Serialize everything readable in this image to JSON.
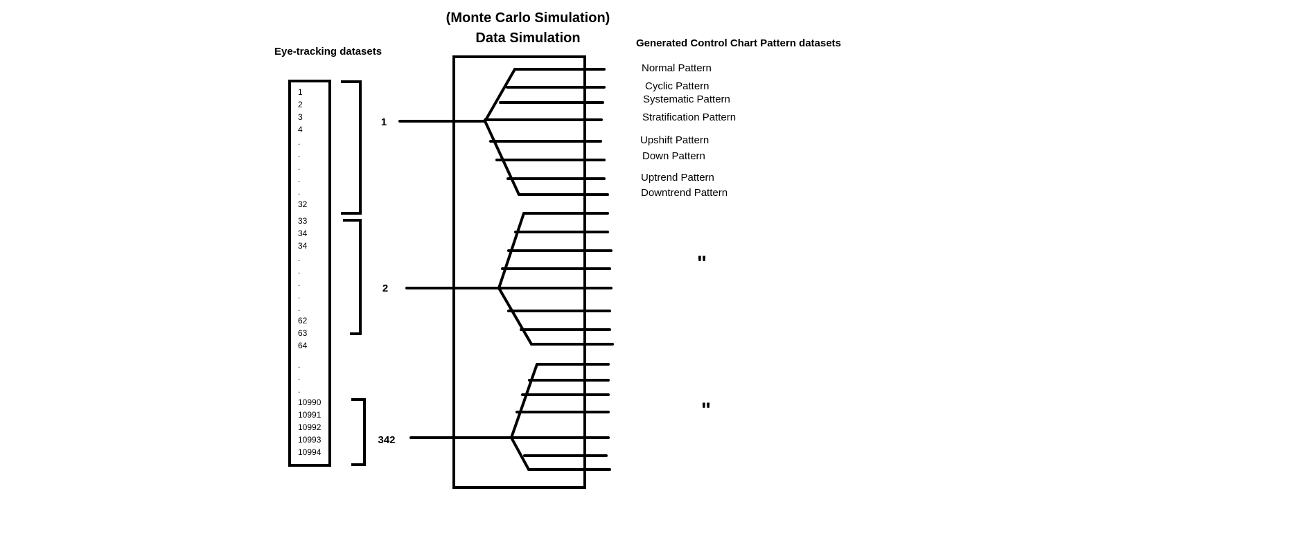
{
  "titles": {
    "line1": "(Monte Carlo Simulation)",
    "line2": "Data Simulation"
  },
  "left_heading": "Eye-tracking datasets",
  "right_heading": "Generated Control Chart Pattern datasets",
  "dataset_list": [
    "1",
    "2",
    "3",
    "4",
    ".",
    ".",
    ".",
    ".",
    ".",
    "32",
    "33",
    "34",
    "34",
    ".",
    ".",
    ".",
    ".",
    ".",
    "62",
    "63",
    "64",
    ".",
    ".",
    ".",
    "10990",
    "10991",
    "10992",
    "10993",
    "10994"
  ],
  "groups": [
    "1",
    "2",
    "342"
  ],
  "patterns": [
    "Normal Pattern",
    "Cyclic Pattern",
    "Systematic Pattern",
    "Stratification Pattern",
    "Upshift Pattern",
    "Down Pattern",
    "Uptrend Pattern",
    "Downtrend Pattern"
  ],
  "ditto_mark": "\""
}
